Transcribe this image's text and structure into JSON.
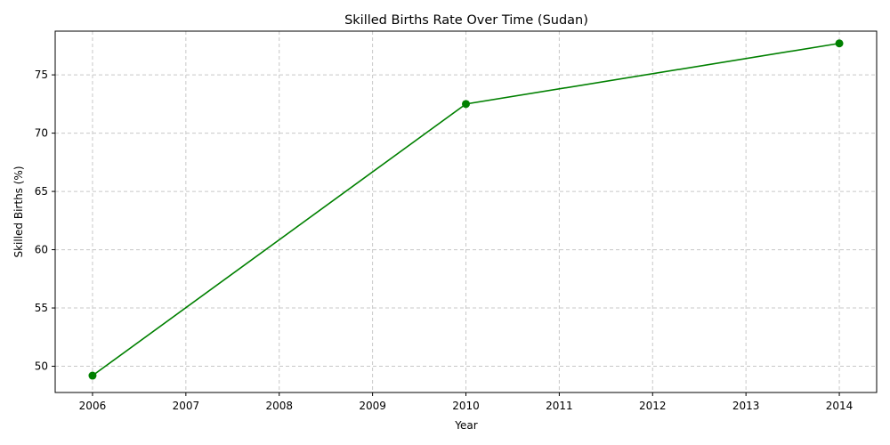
{
  "chart_data": {
    "type": "line",
    "title": "Skilled Births Rate Over Time (Sudan)",
    "xlabel": "Year",
    "ylabel": "Skilled Births (%)",
    "x": [
      2006,
      2010,
      2014
    ],
    "series": [
      {
        "values": [
          49.2,
          72.5,
          77.7
        ],
        "color": "#008000",
        "marker": "circle"
      }
    ],
    "x_ticks": [
      "2006",
      "2007",
      "2008",
      "2009",
      "2010",
      "2011",
      "2012",
      "2013",
      "2014"
    ],
    "y_ticks": [
      "50",
      "55",
      "60",
      "65",
      "70",
      "75"
    ],
    "xlim": [
      2005.6,
      2014.4
    ],
    "ylim": [
      47.75,
      78.75
    ],
    "grid": true,
    "grid_style": "dashed",
    "grid_color": "#c8c8c8"
  }
}
